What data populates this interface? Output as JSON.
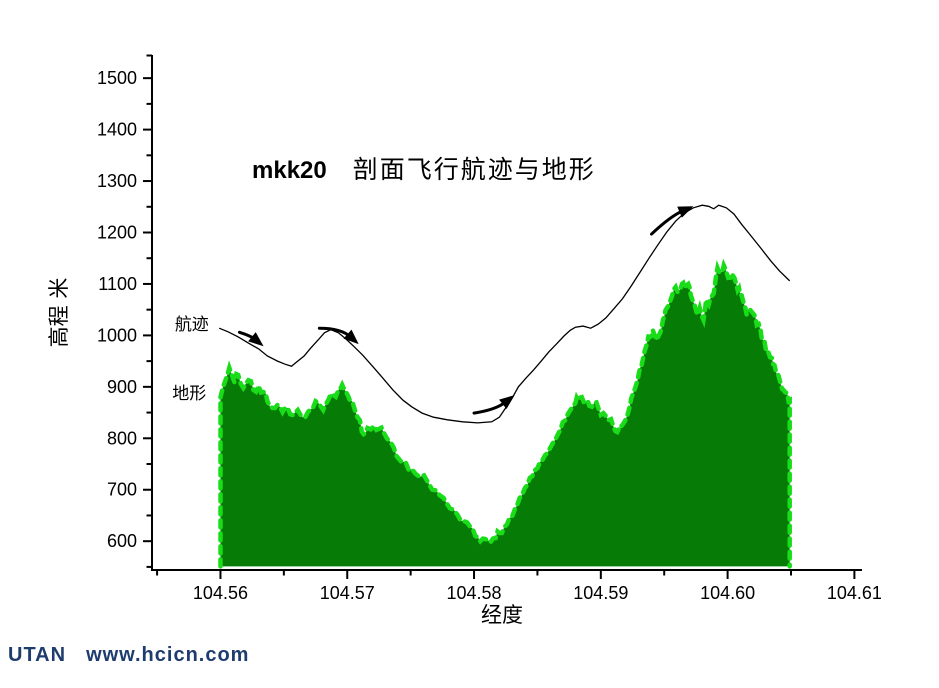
{
  "footer": {
    "brand": "UTAN",
    "site": "www.hcicn.com",
    "color": "#1e3c6e"
  },
  "chart_data": {
    "type": "area",
    "title_model": "mkk20",
    "title_text": "剖面飞行航迹与地形",
    "xlabel": "经度",
    "ylabel": "高程 米",
    "x_range": [
      104.5546,
      104.6106
    ],
    "y_range": [
      544,
      1545
    ],
    "x_major_ticks": [
      104.56,
      104.57,
      104.58,
      104.59,
      104.6,
      104.61
    ],
    "x_tick_labels": [
      "104.56",
      "104.57",
      "104.58",
      "104.59",
      "104.60",
      "104.61"
    ],
    "x_minor_ticks": [
      104.555,
      104.565,
      104.575,
      104.585,
      104.595,
      104.605
    ],
    "y_major_ticks": [
      600,
      700,
      800,
      900,
      1000,
      1100,
      1200,
      1300,
      1400,
      1500
    ],
    "y_minor_ticks": [
      550,
      650,
      750,
      850,
      950,
      1050,
      1150,
      1250,
      1350,
      1450,
      1544
    ],
    "grid": false,
    "legend": "inline-annotations",
    "colors": {
      "terrain_fill": "#067c06",
      "terrain_edge": "#18dd18",
      "track_line": "#000000",
      "axis": "#000000"
    },
    "terrain_base_elev": 551,
    "terrain_roughness_m": 9,
    "series": [
      {
        "name": "地形",
        "type": "area",
        "points": [
          [
            104.56,
            880
          ],
          [
            104.5604,
            913
          ],
          [
            104.5607,
            937
          ],
          [
            104.5611,
            909
          ],
          [
            104.5614,
            923
          ],
          [
            104.5618,
            898
          ],
          [
            104.5622,
            913
          ],
          [
            104.5626,
            894
          ],
          [
            104.563,
            902
          ],
          [
            104.5634,
            890
          ],
          [
            104.5637,
            872
          ],
          [
            104.5641,
            859
          ],
          [
            104.5645,
            865
          ],
          [
            104.5649,
            851
          ],
          [
            104.5653,
            859
          ],
          [
            104.5657,
            845
          ],
          [
            104.5661,
            855
          ],
          [
            104.5665,
            841
          ],
          [
            104.5669,
            851
          ],
          [
            104.5673,
            859
          ],
          [
            104.5677,
            869
          ],
          [
            104.5681,
            855
          ],
          [
            104.5685,
            874
          ],
          [
            104.5689,
            884
          ],
          [
            104.5693,
            894
          ],
          [
            104.5696,
            904
          ],
          [
            104.5699,
            890
          ],
          [
            104.5702,
            874
          ],
          [
            104.5706,
            855
          ],
          [
            104.571,
            835
          ],
          [
            104.5713,
            808
          ],
          [
            104.5716,
            820
          ],
          [
            104.5721,
            824
          ],
          [
            104.5725,
            818
          ],
          [
            104.5729,
            810
          ],
          [
            104.5734,
            793
          ],
          [
            104.5739,
            765
          ],
          [
            104.5746,
            754
          ],
          [
            104.5751,
            740
          ],
          [
            104.5757,
            725
          ],
          [
            104.5764,
            713
          ],
          [
            104.577,
            699
          ],
          [
            104.5776,
            684
          ],
          [
            104.5781,
            664
          ],
          [
            104.5787,
            651
          ],
          [
            104.5792,
            639
          ],
          [
            104.5797,
            628
          ],
          [
            104.5801,
            610
          ],
          [
            104.5805,
            600
          ],
          [
            104.5809,
            604
          ],
          [
            104.5813,
            598
          ],
          [
            104.5817,
            606
          ],
          [
            104.582,
            616
          ],
          [
            104.5824,
            628
          ],
          [
            104.5828,
            645
          ],
          [
            104.5832,
            661
          ],
          [
            104.5836,
            684
          ],
          [
            104.584,
            703
          ],
          [
            104.5844,
            723
          ],
          [
            104.5848,
            738
          ],
          [
            104.5852,
            754
          ],
          [
            104.5856,
            767
          ],
          [
            104.586,
            781
          ],
          [
            104.5864,
            797
          ],
          [
            104.5868,
            816
          ],
          [
            104.5872,
            835
          ],
          [
            104.5876,
            855
          ],
          [
            104.588,
            869
          ],
          [
            104.5882,
            874
          ],
          [
            104.5885,
            880
          ],
          [
            104.5888,
            871
          ],
          [
            104.5891,
            863
          ],
          [
            104.5895,
            869
          ],
          [
            104.5898,
            859
          ],
          [
            104.5902,
            849
          ],
          [
            104.5906,
            835
          ],
          [
            104.591,
            822
          ],
          [
            104.5913,
            812
          ],
          [
            104.5915,
            816
          ],
          [
            104.5917,
            826
          ],
          [
            104.5921,
            845
          ],
          [
            104.5923,
            864
          ],
          [
            104.5925,
            884
          ],
          [
            104.5929,
            913
          ],
          [
            104.5931,
            937
          ],
          [
            104.5933,
            952
          ],
          [
            104.5936,
            981
          ],
          [
            104.5939,
            997
          ],
          [
            104.5941,
            1010
          ],
          [
            104.5944,
            991
          ],
          [
            104.5947,
            1006
          ],
          [
            104.5949,
            1030
          ],
          [
            104.5951,
            1049
          ],
          [
            104.5955,
            1069
          ],
          [
            104.5957,
            1084
          ],
          [
            104.5959,
            1094
          ],
          [
            104.5962,
            1088
          ],
          [
            104.5964,
            1100
          ],
          [
            104.5966,
            1092
          ],
          [
            104.5969,
            1100
          ],
          [
            104.5971,
            1078
          ],
          [
            104.5974,
            1059
          ],
          [
            104.5976,
            1040
          ],
          [
            104.5978,
            1053
          ],
          [
            104.5981,
            1030
          ],
          [
            104.5983,
            1069
          ],
          [
            104.5985,
            1059
          ],
          [
            104.5988,
            1078
          ],
          [
            104.599,
            1098
          ],
          [
            104.5992,
            1131
          ],
          [
            104.5995,
            1123
          ],
          [
            104.5997,
            1136
          ],
          [
            104.5999,
            1123
          ],
          [
            104.6002,
            1113
          ],
          [
            104.6004,
            1117
          ],
          [
            104.6007,
            1098
          ],
          [
            104.6009,
            1092
          ],
          [
            104.6011,
            1078
          ],
          [
            104.6014,
            1053
          ],
          [
            104.6016,
            1045
          ],
          [
            104.6018,
            1049
          ],
          [
            104.6021,
            1040
          ],
          [
            104.6023,
            1020
          ],
          [
            104.6026,
            1010
          ],
          [
            104.6028,
            991
          ],
          [
            104.603,
            975
          ],
          [
            104.6032,
            968
          ],
          [
            104.6035,
            956
          ],
          [
            104.6037,
            942
          ],
          [
            104.604,
            923
          ],
          [
            104.6042,
            904
          ],
          [
            104.6044,
            894
          ],
          [
            104.6047,
            888
          ],
          [
            104.6049,
            874
          ]
        ]
      },
      {
        "name": "航迹",
        "type": "line",
        "points": [
          [
            104.5599,
            1014
          ],
          [
            104.5606,
            1007
          ],
          [
            104.5614,
            997
          ],
          [
            104.5622,
            985
          ],
          [
            104.563,
            974
          ],
          [
            104.5637,
            960
          ],
          [
            104.5645,
            950
          ],
          [
            104.5651,
            944
          ],
          [
            104.5656,
            940
          ],
          [
            104.566,
            948
          ],
          [
            104.5666,
            960
          ],
          [
            104.5671,
            975
          ],
          [
            104.5677,
            991
          ],
          [
            104.5682,
            1005
          ],
          [
            104.5687,
            1011
          ],
          [
            104.5693,
            1005
          ],
          [
            104.5699,
            993
          ],
          [
            104.5705,
            979
          ],
          [
            104.5712,
            962
          ],
          [
            104.572,
            940
          ],
          [
            104.5728,
            917
          ],
          [
            104.5736,
            894
          ],
          [
            104.5744,
            874
          ],
          [
            104.5751,
            861
          ],
          [
            104.5759,
            849
          ],
          [
            104.5768,
            841
          ],
          [
            104.5779,
            836
          ],
          [
            104.5791,
            832
          ],
          [
            104.5803,
            830
          ],
          [
            104.5814,
            832
          ],
          [
            104.582,
            841
          ],
          [
            104.5825,
            859
          ],
          [
            104.583,
            878
          ],
          [
            104.5835,
            900
          ],
          [
            104.5841,
            917
          ],
          [
            104.5847,
            933
          ],
          [
            104.5853,
            950
          ],
          [
            104.5859,
            968
          ],
          [
            104.5865,
            983
          ],
          [
            104.5871,
            999
          ],
          [
            104.5876,
            1010
          ],
          [
            104.588,
            1016
          ],
          [
            104.5886,
            1018
          ],
          [
            104.5892,
            1014
          ],
          [
            104.5898,
            1022
          ],
          [
            104.5904,
            1034
          ],
          [
            104.591,
            1051
          ],
          [
            104.5917,
            1071
          ],
          [
            104.5924,
            1096
          ],
          [
            104.5931,
            1123
          ],
          [
            104.5938,
            1150
          ],
          [
            104.5945,
            1176
          ],
          [
            104.5952,
            1201
          ],
          [
            104.5959,
            1222
          ],
          [
            104.5966,
            1238
          ],
          [
            104.5973,
            1248
          ],
          [
            104.598,
            1253
          ],
          [
            104.5985,
            1251
          ],
          [
            104.5989,
            1246
          ],
          [
            104.5993,
            1253
          ],
          [
            104.5999,
            1248
          ],
          [
            104.6005,
            1236
          ],
          [
            104.6011,
            1216
          ],
          [
            104.6018,
            1195
          ],
          [
            104.6026,
            1170
          ],
          [
            104.6034,
            1145
          ],
          [
            104.6041,
            1125
          ],
          [
            104.6049,
            1106
          ]
        ]
      }
    ],
    "annotations": {
      "labels": [
        {
          "text": "航迹",
          "lon": 104.5564,
          "elev": 1022
        },
        {
          "text": "地形",
          "lon": 104.5562,
          "elev": 888
        }
      ],
      "arrows": [
        {
          "tail": [
            104.5615,
            1006
          ],
          "mid": [
            104.5624,
            999
          ],
          "tip": [
            104.5634,
            979
          ]
        },
        {
          "tail": [
            104.5678,
            1014
          ],
          "mid": [
            104.5695,
            1014
          ],
          "tip": [
            104.5709,
            983
          ]
        },
        {
          "tail": [
            104.58,
            849
          ],
          "mid": [
            104.5817,
            855
          ],
          "tip": [
            104.5832,
            884
          ]
        },
        {
          "tail": [
            104.594,
            1197
          ],
          "mid": [
            104.5955,
            1232
          ],
          "tip": [
            104.5973,
            1251
          ]
        }
      ]
    }
  }
}
